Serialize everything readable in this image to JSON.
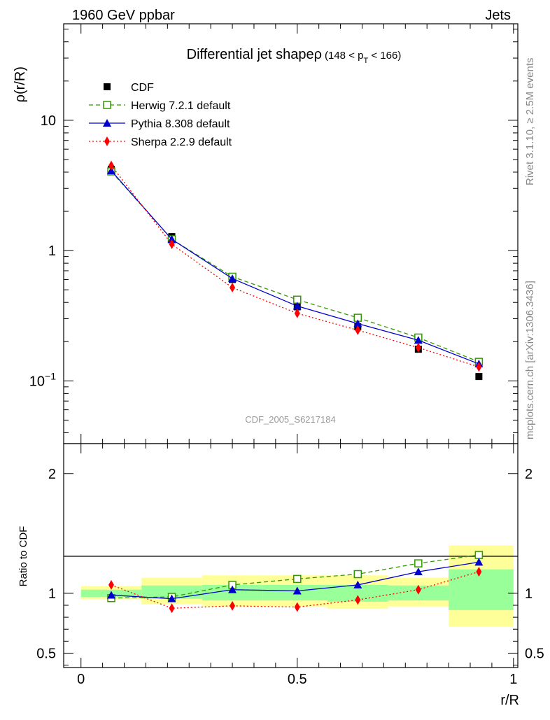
{
  "header": {
    "left": "1960 GeV ppbar",
    "right": "Jets"
  },
  "side_labels": {
    "rivet": "Rivet 3.1.10, ≥ 2.5M events",
    "mcplots": "mcplots.cern.ch [arXiv:1306.3436]"
  },
  "chart_data": [
    {
      "type": "line",
      "panel": "main",
      "title": "Differential jet shapeρ",
      "title_suffix": "(148 < p",
      "title_sub": "T",
      "title_end": " < 166)",
      "ylabel": "ρ(r/R)",
      "watermark": "CDF_2005_S6217184",
      "yscale": "log",
      "ylim": [
        0.033,
        55
      ],
      "xlim": [
        -0.04,
        1.01
      ],
      "yticks": [
        {
          "v": 10,
          "label": "10"
        },
        {
          "v": 1,
          "label": "1"
        },
        {
          "v": 0.1,
          "label": "10",
          "sup": "−1"
        }
      ],
      "x": [
        0.07,
        0.21,
        0.35,
        0.5,
        0.64,
        0.78,
        0.92
      ],
      "series": [
        {
          "name": "CDF",
          "color": "#000000",
          "marker": "square-filled",
          "line": "none",
          "values": [
            4.2,
            1.28,
            0.6,
            0.37,
            0.26,
            0.175,
            0.108
          ]
        },
        {
          "name": "Herwig 7.2.1 default",
          "color": "#339900",
          "marker": "square-open",
          "line": "dashed",
          "values": [
            4.05,
            1.22,
            0.63,
            0.42,
            0.305,
            0.215,
            0.14
          ]
        },
        {
          "name": "Pythia 8.308 default",
          "color": "#0000cc",
          "marker": "triangle",
          "line": "solid",
          "values": [
            4.1,
            1.22,
            0.61,
            0.375,
            0.275,
            0.205,
            0.135
          ]
        },
        {
          "name": "Sherpa 2.2.9 default",
          "color": "#ff0000",
          "marker": "diamond",
          "line": "dotted",
          "values": [
            4.5,
            1.12,
            0.52,
            0.33,
            0.245,
            0.18,
            0.128
          ]
        }
      ]
    },
    {
      "type": "line",
      "panel": "ratio",
      "ylabel": "Ratio to CDF",
      "xlabel": "r/R",
      "ylim": [
        0.38,
        2.25
      ],
      "xlim": [
        -0.04,
        1.01
      ],
      "yticks": [
        {
          "v": 2,
          "label": "2"
        },
        {
          "v": 1,
          "label": "1"
        },
        {
          "v": 0.5,
          "label": "0.5"
        }
      ],
      "xticks": [
        {
          "v": 0,
          "label": "0"
        },
        {
          "v": 0.5,
          "label": "0.5"
        },
        {
          "v": 1,
          "label": "1"
        }
      ],
      "bands": [
        {
          "x0": 0.0,
          "x1": 0.14,
          "outer": [
            0.95,
            1.06
          ],
          "inner": [
            0.97,
            1.03
          ]
        },
        {
          "x0": 0.14,
          "x1": 0.28,
          "outer": [
            0.91,
            1.13
          ],
          "inner": [
            0.955,
            1.065
          ]
        },
        {
          "x0": 0.28,
          "x1": 0.42,
          "outer": [
            0.89,
            1.15
          ],
          "inner": [
            0.94,
            1.07
          ]
        },
        {
          "x0": 0.42,
          "x1": 0.57,
          "outer": [
            0.89,
            1.15
          ],
          "inner": [
            0.94,
            1.07
          ]
        },
        {
          "x0": 0.57,
          "x1": 0.71,
          "outer": [
            0.87,
            1.15
          ],
          "inner": [
            0.93,
            1.07
          ]
        },
        {
          "x0": 0.71,
          "x1": 0.85,
          "outer": [
            0.89,
            1.13
          ],
          "inner": [
            0.94,
            1.065
          ]
        },
        {
          "x0": 0.85,
          "x1": 1.0,
          "outer": [
            0.72,
            1.4
          ],
          "inner": [
            0.86,
            1.2
          ]
        }
      ],
      "x": [
        0.07,
        0.21,
        0.35,
        0.5,
        0.64,
        0.78,
        0.92
      ],
      "series": [
        {
          "name": "Herwig 7.2.1 default",
          "color": "#339900",
          "marker": "square-open",
          "line": "dashed",
          "values": [
            0.96,
            0.97,
            1.07,
            1.12,
            1.16,
            1.25,
            1.32
          ]
        },
        {
          "name": "Pythia 8.308 default",
          "color": "#0000cc",
          "marker": "triangle",
          "line": "solid",
          "values": [
            0.985,
            0.955,
            1.03,
            1.02,
            1.07,
            1.18,
            1.26
          ]
        },
        {
          "name": "Sherpa 2.2.9 default",
          "color": "#ff0000",
          "marker": "diamond",
          "line": "dotted",
          "values": [
            1.07,
            0.875,
            0.895,
            0.885,
            0.945,
            1.03,
            1.18
          ]
        }
      ]
    }
  ]
}
